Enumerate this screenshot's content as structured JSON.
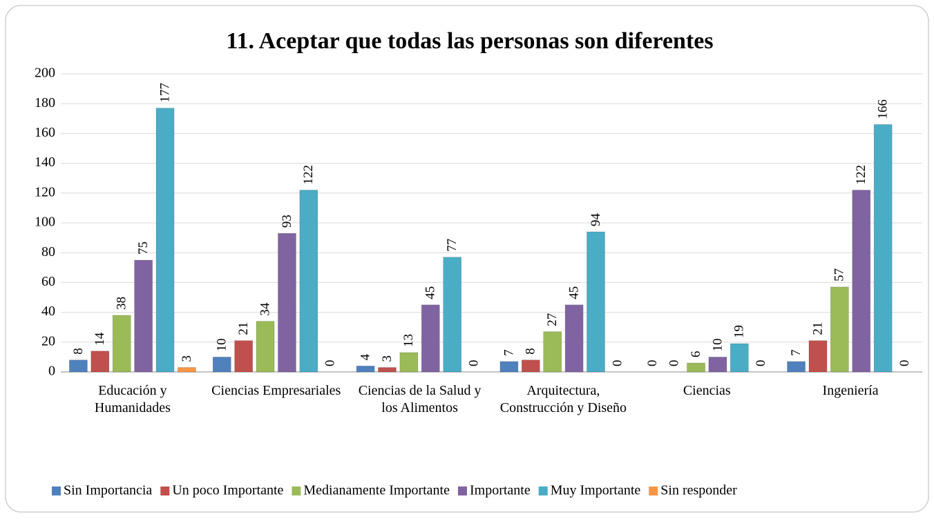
{
  "chart_data": {
    "type": "bar",
    "title": "11. Aceptar que todas las personas son diferentes",
    "categories": [
      "Educación y Humanidades",
      "Ciencias Empresariales",
      "Ciencias de la Salud y los Alimentos",
      "Arquitectura, Construcción y Diseño",
      "Ciencias",
      "Ingeniería"
    ],
    "series": [
      {
        "name": "Sin Importancia",
        "color": "#4f81bd",
        "values": [
          8,
          10,
          4,
          7,
          0,
          7
        ]
      },
      {
        "name": "Un poco Importante",
        "color": "#c0504d",
        "values": [
          14,
          21,
          3,
          8,
          0,
          21
        ]
      },
      {
        "name": "Medianamente Importante",
        "color": "#9bbb59",
        "values": [
          38,
          34,
          13,
          27,
          6,
          57
        ]
      },
      {
        "name": "Importante",
        "color": "#8064a2",
        "values": [
          75,
          93,
          45,
          45,
          10,
          122
        ]
      },
      {
        "name": "Muy Importante",
        "color": "#4bacc6",
        "values": [
          177,
          122,
          77,
          94,
          19,
          166
        ]
      },
      {
        "name": "Sin responder",
        "color": "#f79646",
        "values": [
          3,
          0,
          0,
          0,
          0,
          0
        ]
      }
    ],
    "ylim": [
      0,
      200
    ],
    "yticks": [
      0,
      20,
      40,
      60,
      80,
      100,
      120,
      140,
      160,
      180,
      200
    ],
    "grid": true,
    "legend": "bottom"
  }
}
